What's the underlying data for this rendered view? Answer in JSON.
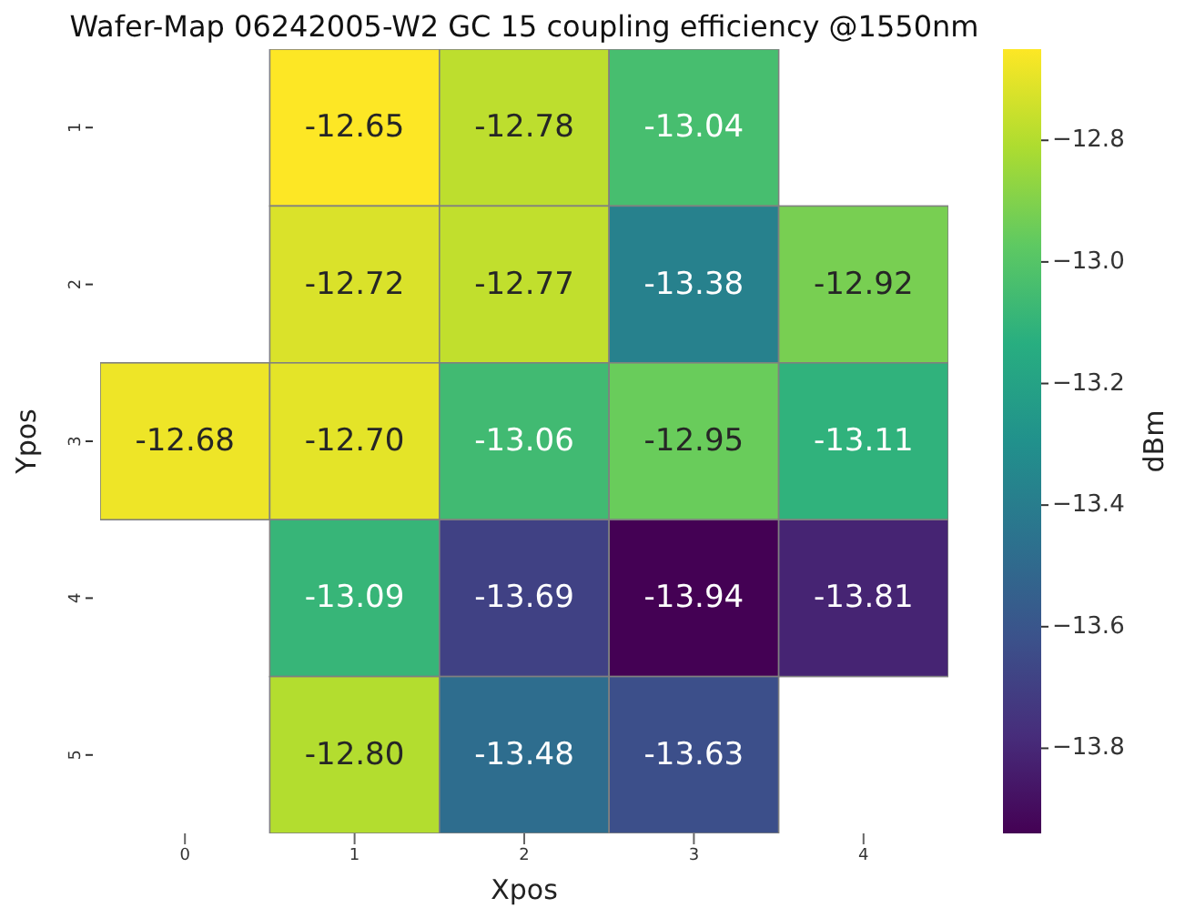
{
  "chart_data": {
    "type": "heatmap",
    "title": "Wafer-Map 06242005-W2 GC 15 coupling efficiency @1550nm",
    "xlabel": "Xpos",
    "ylabel": "Ypos",
    "clabel": "dBm",
    "categories": [
      "0",
      "1",
      "2",
      "3",
      "4"
    ],
    "y_categories": [
      "1",
      "2",
      "3",
      "4",
      "5"
    ],
    "cells": [
      [
        null,
        -12.65,
        -12.78,
        -13.04,
        null
      ],
      [
        null,
        -12.72,
        -12.77,
        -13.38,
        -12.92
      ],
      [
        -12.68,
        -12.7,
        -13.06,
        -12.95,
        -13.11
      ],
      [
        null,
        -13.09,
        -13.69,
        -13.94,
        -13.81
      ],
      [
        null,
        -12.8,
        -13.48,
        -13.63,
        null
      ]
    ],
    "cell_labels": [
      [
        null,
        "-12.65",
        "-12.78",
        "-13.04",
        null
      ],
      [
        null,
        "-12.72",
        "-12.77",
        "-13.38",
        "-12.92"
      ],
      [
        "-12.68",
        "-12.70",
        "-13.06",
        "-12.95",
        "-13.11"
      ],
      [
        null,
        "-13.09",
        "-13.69",
        "-13.94",
        "-13.81"
      ],
      [
        null,
        "-12.80",
        "-13.48",
        "-13.63",
        null
      ]
    ],
    "data_labels": true,
    "clim": [
      -13.94,
      -12.65
    ],
    "cticks": [
      {
        "value": -12.8,
        "label": "−12.8"
      },
      {
        "value": -13.0,
        "label": "−13.0"
      },
      {
        "value": -13.2,
        "label": "−13.2"
      },
      {
        "value": -13.4,
        "label": "−13.4"
      },
      {
        "value": -13.6,
        "label": "−13.6"
      },
      {
        "value": -13.8,
        "label": "−13.8"
      }
    ]
  }
}
